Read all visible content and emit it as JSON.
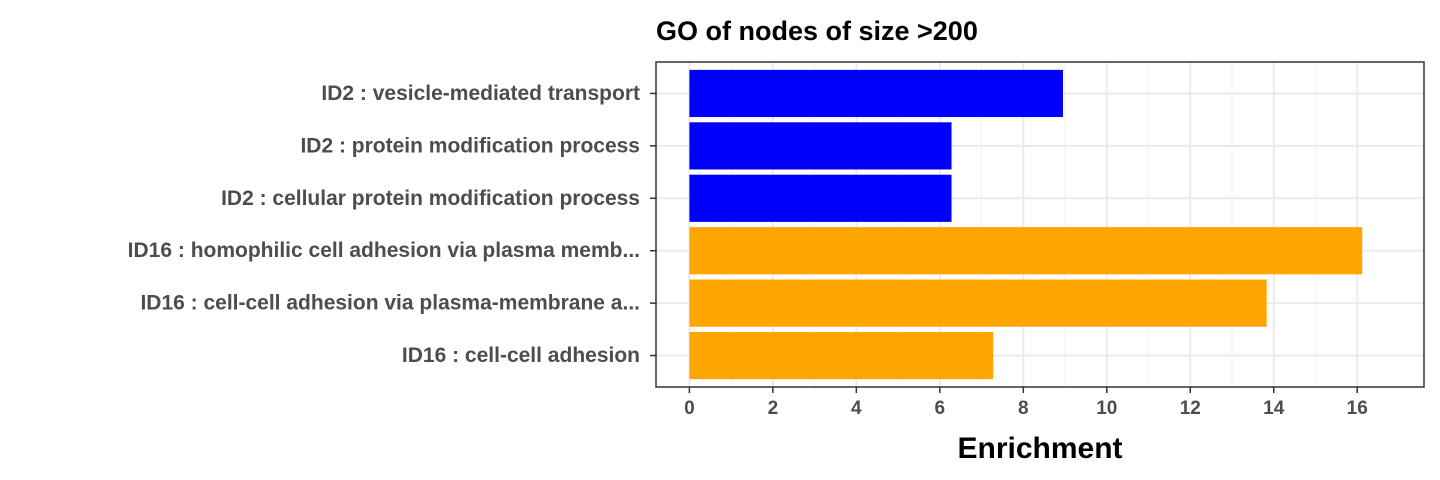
{
  "chart_data": {
    "type": "bar",
    "orientation": "horizontal",
    "title": "GO of nodes of size >200",
    "xlabel": "Enrichment",
    "ylabel": "",
    "xlim": [
      -0.8,
      17.6
    ],
    "xticks": [
      0,
      2,
      4,
      6,
      8,
      10,
      12,
      14,
      16
    ],
    "grid": true,
    "legend": "none",
    "categories": [
      "ID2 : vesicle-mediated transport",
      "ID2 : protein modification process",
      "ID2 : cellular protein modification process",
      "ID16 : homophilic cell adhesion via plasma memb...",
      "ID16 : cell-cell adhesion via plasma-membrane a...",
      "ID16 : cell-cell adhesion"
    ],
    "values": [
      8.95,
      6.28,
      6.28,
      16.12,
      13.83,
      7.28
    ],
    "colors": [
      "#0000ff",
      "#0000ff",
      "#0000ff",
      "#ffa500",
      "#ffa500",
      "#ffa500"
    ]
  }
}
